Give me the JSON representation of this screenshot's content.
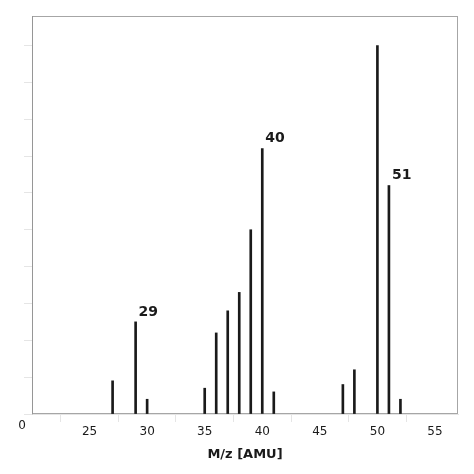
{
  "chart_data": {
    "type": "stem",
    "xlabel": "M/z [AMU]",
    "x": [
      27,
      29,
      30,
      35,
      36,
      37,
      38,
      39,
      40,
      41,
      47,
      48,
      50,
      51,
      52
    ],
    "values": [
      9,
      25,
      4,
      7,
      22,
      28,
      33,
      50,
      72,
      6,
      8,
      12,
      100,
      62,
      4
    ],
    "color": "#1a1a1a",
    "xlim": [
      20,
      57
    ],
    "ylim": [
      0,
      108
    ],
    "xticks": [
      25,
      30,
      35,
      40,
      45,
      50,
      55
    ],
    "yticks": [
      0,
      10,
      20,
      30,
      40,
      50,
      60,
      70,
      80,
      90,
      100
    ],
    "tick_labels": "x",
    "grid": false,
    "annotations": [
      {
        "x": 29,
        "y": 25,
        "text": "29"
      },
      {
        "x": 40,
        "y": 72,
        "text": "40"
      },
      {
        "x": 51,
        "y": 62,
        "text": "51"
      },
      {
        "x": 20,
        "y": 0,
        "text": "0"
      }
    ]
  }
}
